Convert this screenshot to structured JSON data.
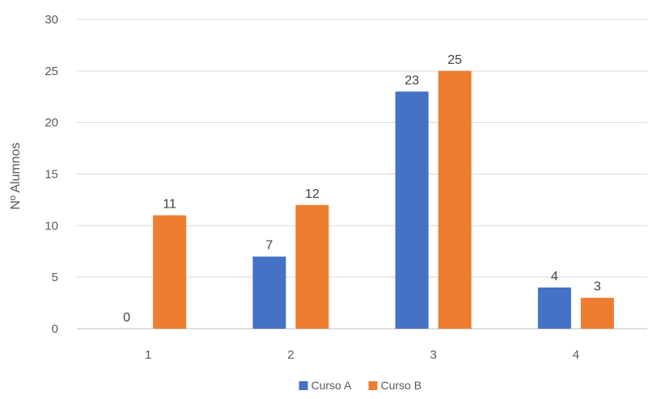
{
  "chart_data": {
    "type": "bar",
    "title": "",
    "xlabel": "",
    "ylabel": "Nº Alumnos",
    "categories": [
      "1",
      "2",
      "3",
      "4"
    ],
    "series": [
      {
        "name": "Curso A",
        "color": "#4472C4",
        "values": [
          0,
          7,
          23,
          4
        ]
      },
      {
        "name": "Curso B",
        "color": "#ED7D31",
        "values": [
          11,
          12,
          25,
          3
        ]
      }
    ],
    "ylim": [
      0,
      30
    ],
    "yticks": [
      0,
      5,
      10,
      15,
      20,
      25,
      30
    ],
    "grid": true,
    "legend": "bottom"
  }
}
